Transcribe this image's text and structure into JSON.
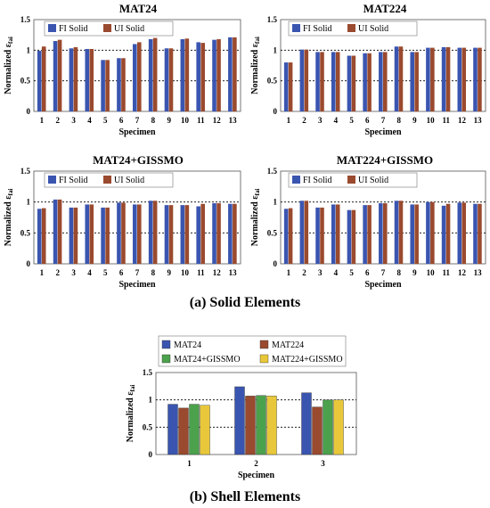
{
  "colors": {
    "blue": "#3a55b0",
    "brown": "#9a4a2e",
    "green": "#4ca14c",
    "yellow": "#e8c83a",
    "red": "#d7282f"
  },
  "section_labels": {
    "solid": "(a) Solid Elements",
    "shell": "(b) Shell Elements"
  },
  "chart_data": [
    {
      "type": "bar",
      "title": "MAT24",
      "xlabel": "Specimen",
      "ylabel": "Normalized ε",
      "ylabel_sub": "fai",
      "ylim": [
        0,
        1.5
      ],
      "yticks": [
        "0",
        "0.5",
        "1",
        "1.5"
      ],
      "ref_lines": [
        0.5,
        1.0
      ],
      "categories": [
        "1",
        "2",
        "3",
        "4",
        "5",
        "6",
        "7",
        "8",
        "9",
        "10",
        "11",
        "12",
        "13"
      ],
      "series": [
        {
          "name": "FI Solid",
          "values": [
            0.99,
            1.15,
            1.03,
            1.02,
            0.84,
            0.87,
            1.1,
            1.18,
            1.03,
            1.18,
            1.13,
            1.17,
            1.21
          ]
        },
        {
          "name": "UI Solid",
          "values": [
            1.06,
            1.17,
            1.05,
            1.02,
            0.84,
            0.87,
            1.13,
            1.2,
            1.03,
            1.19,
            1.12,
            1.18,
            1.21
          ]
        }
      ]
    },
    {
      "type": "bar",
      "title": "MAT224",
      "xlabel": "Specimen",
      "ylabel": "Normalized ε",
      "ylabel_sub": "fai",
      "ylim": [
        0,
        1.5
      ],
      "yticks": [
        "0",
        "0.5",
        "1",
        "1.5"
      ],
      "ref_lines": [
        0.5,
        1.0
      ],
      "categories": [
        "1",
        "2",
        "3",
        "4",
        "5",
        "6",
        "7",
        "8",
        "9",
        "10",
        "11",
        "12",
        "13"
      ],
      "series": [
        {
          "name": "FI Solid",
          "values": [
            0.8,
            1.01,
            0.97,
            0.97,
            0.91,
            0.95,
            0.97,
            1.06,
            0.97,
            1.04,
            1.05,
            1.04,
            1.04
          ]
        },
        {
          "name": "UI Solid",
          "values": [
            0.8,
            1.01,
            0.97,
            0.97,
            0.91,
            0.95,
            0.97,
            1.06,
            0.97,
            1.04,
            1.05,
            1.04,
            1.04
          ]
        }
      ]
    },
    {
      "type": "bar",
      "title": "MAT24+GISSMO",
      "xlabel": "Specimen",
      "ylabel": "Normalized ε",
      "ylabel_sub": "fai",
      "ylim": [
        0,
        1.5
      ],
      "yticks": [
        "0",
        "0.5",
        "1",
        "1.5"
      ],
      "ref_lines": [
        0.5,
        1.0
      ],
      "categories": [
        "1",
        "2",
        "3",
        "4",
        "5",
        "6",
        "7",
        "8",
        "9",
        "10",
        "11",
        "12",
        "13"
      ],
      "series": [
        {
          "name": "FI Solid",
          "values": [
            0.89,
            1.04,
            0.91,
            0.96,
            0.91,
            0.99,
            0.96,
            1.02,
            0.95,
            0.95,
            0.93,
            0.98,
            0.97
          ]
        },
        {
          "name": "UI Solid",
          "values": [
            0.9,
            1.04,
            0.91,
            0.96,
            0.91,
            0.99,
            0.96,
            1.02,
            0.95,
            0.95,
            0.97,
            0.98,
            0.97
          ]
        }
      ]
    },
    {
      "type": "bar",
      "title": "MAT224+GISSMO",
      "xlabel": "Specimen",
      "ylabel": "Normalized ε",
      "ylabel_sub": "fai",
      "ylim": [
        0,
        1.5
      ],
      "yticks": [
        "0",
        "0.5",
        "1",
        "1.5"
      ],
      "ref_lines": [
        0.5,
        1.0
      ],
      "categories": [
        "1",
        "2",
        "3",
        "4",
        "5",
        "6",
        "7",
        "8",
        "9",
        "10",
        "11",
        "12",
        "13"
      ],
      "series": [
        {
          "name": "FI Solid",
          "values": [
            0.89,
            1.02,
            0.91,
            0.96,
            0.87,
            0.95,
            0.98,
            1.02,
            0.96,
            1.0,
            0.94,
            0.99,
            0.97
          ]
        },
        {
          "name": "UI Solid",
          "values": [
            0.9,
            1.02,
            0.91,
            0.96,
            0.87,
            0.95,
            0.98,
            1.02,
            0.96,
            1.0,
            0.97,
            0.99,
            0.97
          ]
        }
      ]
    },
    {
      "type": "bar",
      "title": "",
      "xlabel": "Specimen",
      "ylabel": "Normalized ε",
      "ylabel_sub": "fai",
      "ylim": [
        0,
        1.5
      ],
      "yticks": [
        "0",
        "0.5",
        "1",
        "1.5"
      ],
      "ref_lines": [
        0.5,
        1.0
      ],
      "categories": [
        "1",
        "2",
        "3"
      ],
      "series": [
        {
          "name": "MAT24",
          "values": [
            0.92,
            1.24,
            1.13
          ]
        },
        {
          "name": "MAT224",
          "values": [
            0.85,
            1.07,
            0.87
          ]
        },
        {
          "name": "MAT24+GISSMO",
          "values": [
            0.92,
            1.08,
            1.0
          ]
        },
        {
          "name": "MAT224+GISSMO",
          "values": [
            0.9,
            1.07,
            1.0
          ]
        }
      ]
    }
  ]
}
